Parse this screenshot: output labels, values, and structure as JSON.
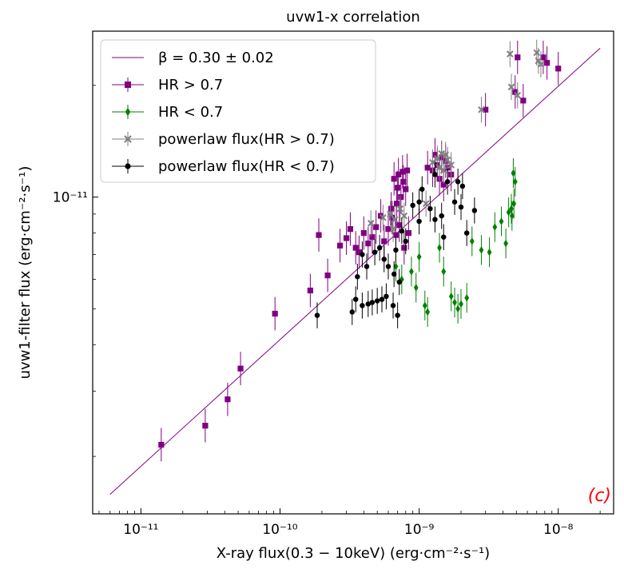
{
  "chart_data": {
    "type": "scatter",
    "title": "uvw1-x correlation",
    "xlabel": "X-ray flux(0.3 − 10keV) (erg·cm⁻²·s⁻¹)",
    "ylabel": "uvw1-filter flux (erg·cm⁻²·s⁻¹)",
    "xscale": "log",
    "yscale": "log",
    "xlim": [
      4.5e-12,
      2.5e-08
    ],
    "ylim": [
      1.4e-12,
      2.8e-11
    ],
    "x_ticks": [
      {
        "value": 1e-11,
        "label": "10⁻¹¹"
      },
      {
        "value": 1e-10,
        "label": "10⁻¹⁰"
      },
      {
        "value": 1e-09,
        "label": "10⁻⁹"
      },
      {
        "value": 1e-08,
        "label": "10⁻⁸"
      }
    ],
    "y_ticks": [
      {
        "value": 1e-11,
        "label": "10⁻¹¹"
      }
    ],
    "panel_label": "(c)",
    "legend": {
      "placement": "top-left"
    },
    "fit_line": {
      "name": "β = 0.30 ± 0.02",
      "color": "#800080",
      "x": [
        6e-12,
        2e-08
      ],
      "y": [
        1.58e-12,
        2.52e-11
      ]
    },
    "series": [
      {
        "name": "HR > 0.7",
        "color": "#800080",
        "marker": "square",
        "yerr_dex": 0.045,
        "points": [
          [
            1.4e-11,
            2.15e-12
          ],
          [
            2.9e-11,
            2.42e-12
          ],
          [
            4.2e-11,
            2.85e-12
          ],
          [
            5.2e-11,
            3.45e-12
          ],
          [
            9.2e-11,
            4.85e-12
          ],
          [
            1.65e-10,
            5.6e-12
          ],
          [
            2.2e-10,
            6.15e-12
          ],
          [
            1.9e-10,
            7.9e-12
          ],
          [
            2.7e-10,
            7.4e-12
          ],
          [
            3e-10,
            7.75e-12
          ],
          [
            3.2e-10,
            8.2e-12
          ],
          [
            3.5e-10,
            7.3e-12
          ],
          [
            3.7e-10,
            7.1e-12
          ],
          [
            4e-10,
            8e-12
          ],
          [
            4.3e-10,
            7.5e-12
          ],
          [
            4.6e-10,
            7.8e-12
          ],
          [
            4.9e-10,
            8.3e-12
          ],
          [
            5.3e-10,
            8.9e-12
          ],
          [
            5.6e-10,
            7.6e-12
          ],
          [
            6e-10,
            8.2e-12
          ],
          [
            6.4e-10,
            8.8e-12
          ],
          [
            6.8e-10,
            7.9e-12
          ],
          [
            7.2e-10,
            8.4e-12
          ],
          [
            7.8e-10,
            7.3e-12
          ],
          [
            8.4e-10,
            8e-12
          ],
          [
            6.3e-10,
            9.3e-12
          ],
          [
            6.9e-10,
            9.6e-12
          ],
          [
            7.4e-10,
            1e-11
          ],
          [
            8e-10,
            1.05e-11
          ],
          [
            6.6e-10,
            1.12e-11
          ],
          [
            7.1e-10,
            1.15e-11
          ],
          [
            7.6e-10,
            1.17e-11
          ],
          [
            8.2e-10,
            1.18e-11
          ],
          [
            7e-10,
            1.06e-11
          ],
          [
            7.7e-10,
            1.1e-11
          ],
          [
            1.15e-09,
            1.2e-11
          ],
          [
            1.25e-09,
            1.18e-11
          ],
          [
            1.35e-09,
            1.22e-11
          ],
          [
            1.45e-09,
            1.28e-11
          ],
          [
            1.55e-09,
            1.25e-11
          ],
          [
            1.3e-09,
            1.3e-11
          ],
          [
            1.6e-09,
            1.2e-11
          ],
          [
            1.7e-09,
            1.15e-11
          ],
          [
            1.4e-09,
            1.12e-11
          ],
          [
            1.5e-09,
            1.08e-11
          ],
          [
            3e-09,
            1.72e-11
          ],
          [
            4.9e-09,
            1.92e-11
          ],
          [
            5.6e-09,
            1.82e-11
          ],
          [
            5.1e-09,
            2.38e-11
          ],
          [
            7.8e-09,
            2.38e-11
          ],
          [
            8.3e-09,
            2.3e-11
          ],
          [
            1e-08,
            2.22e-11
          ]
        ]
      },
      {
        "name": "HR < 0.7",
        "color": "#008000",
        "marker": "diamond",
        "yerr_dex": 0.04,
        "points": [
          [
            6.8e-10,
            6.5e-12
          ],
          [
            7.5e-10,
            6e-12
          ],
          [
            8.8e-10,
            6.3e-12
          ],
          [
            1e-09,
            6.9e-12
          ],
          [
            9.5e-10,
            5.7e-12
          ],
          [
            1.1e-09,
            5.1e-12
          ],
          [
            1.15e-09,
            4.9e-12
          ],
          [
            1.4e-09,
            7.3e-12
          ],
          [
            1.5e-09,
            6.3e-12
          ],
          [
            1.7e-09,
            5.4e-12
          ],
          [
            1.8e-09,
            5.2e-12
          ],
          [
            1.9e-09,
            5e-12
          ],
          [
            2e-09,
            5.15e-12
          ],
          [
            2.2e-09,
            5.35e-12
          ],
          [
            2.4e-09,
            7.6e-12
          ],
          [
            2.8e-09,
            7.2e-12
          ],
          [
            3.2e-09,
            7.1e-12
          ],
          [
            3.5e-09,
            8.3e-12
          ],
          [
            3.9e-09,
            8.6e-12
          ],
          [
            4.2e-09,
            7.5e-12
          ],
          [
            4.4e-09,
            9.1e-12
          ],
          [
            4.6e-09,
            9.3e-12
          ],
          [
            4.8e-09,
            9.6e-12
          ],
          [
            4.9e-09,
            1.1e-11
          ],
          [
            4.75e-09,
            1.16e-11
          ],
          [
            4.65e-09,
            8.9e-12
          ]
        ]
      },
      {
        "name": "powerlaw flux(HR > 0.7)",
        "color": "#808080",
        "marker": "x",
        "yerr_dex": 0.035,
        "points": [
          [
            4.5e-10,
            8.5e-12
          ],
          [
            5.5e-10,
            8.8e-12
          ],
          [
            6.2e-10,
            9e-12
          ],
          [
            6.7e-10,
            8.7e-12
          ],
          [
            7.3e-10,
            9.3e-12
          ],
          [
            7.8e-10,
            8.9e-12
          ],
          [
            6.5e-10,
            8.2e-12
          ],
          [
            1.25e-09,
            1.24e-11
          ],
          [
            1.35e-09,
            1.27e-11
          ],
          [
            1.45e-09,
            1.31e-11
          ],
          [
            1.55e-09,
            1.3e-11
          ],
          [
            1.6e-09,
            1.26e-11
          ],
          [
            1.4e-09,
            1.2e-11
          ],
          [
            1.5e-09,
            1.18e-11
          ],
          [
            1.7e-09,
            1.22e-11
          ],
          [
            1.12e-09,
            9.6e-12
          ],
          [
            2.8e-09,
            1.72e-11
          ],
          [
            4.5e-09,
            2.43e-11
          ],
          [
            4.6e-09,
            1.98e-11
          ],
          [
            5.1e-09,
            1.88e-11
          ],
          [
            7e-09,
            2.45e-11
          ],
          [
            7.2e-09,
            2.33e-11
          ],
          [
            7.5e-09,
            2.28e-11
          ]
        ]
      },
      {
        "name": "powerlaw flux(HR < 0.7)",
        "color": "#000000",
        "marker": "circle",
        "yerr_dex": 0.035,
        "points": [
          [
            1.85e-10,
            4.8e-12
          ],
          [
            3.3e-10,
            4.9e-12
          ],
          [
            3.5e-10,
            5.3e-12
          ],
          [
            3.9e-10,
            5.1e-12
          ],
          [
            4.3e-10,
            5.15e-12
          ],
          [
            4.6e-10,
            5.2e-12
          ],
          [
            5e-10,
            5.25e-12
          ],
          [
            5.4e-10,
            5.3e-12
          ],
          [
            5.8e-10,
            5.4e-12
          ],
          [
            6.5e-10,
            5.1e-12
          ],
          [
            7e-10,
            4.8e-12
          ],
          [
            3.6e-10,
            6.1e-12
          ],
          [
            4.2e-10,
            6.5e-12
          ],
          [
            5.2e-10,
            7.3e-12
          ],
          [
            6e-10,
            6.5e-12
          ],
          [
            6.6e-10,
            6.2e-12
          ],
          [
            7.2e-10,
            5.9e-12
          ],
          [
            3.9e-10,
            7e-12
          ],
          [
            4.8e-10,
            7.1e-12
          ],
          [
            5.6e-10,
            6.8e-12
          ],
          [
            6.8e-10,
            7.2e-12
          ],
          [
            7.5e-10,
            8.1e-12
          ],
          [
            8e-10,
            7.6e-12
          ],
          [
            1e-09,
            8.6e-12
          ],
          [
            1.05e-09,
            1.05e-11
          ],
          [
            9e-10,
            9.5e-12
          ],
          [
            1.2e-09,
            9.3e-12
          ],
          [
            1.3e-09,
            8.7e-12
          ],
          [
            1.45e-09,
            8.9e-12
          ],
          [
            1.8e-09,
            9.7e-12
          ],
          [
            2e-09,
            9.4e-12
          ],
          [
            2.2e-09,
            8e-12
          ],
          [
            2.5e-09,
            9.2e-12
          ],
          [
            1.6e-09,
            1.1e-11
          ],
          [
            1.3e-09,
            1.15e-11
          ],
          [
            1.5e-09,
            7.8e-12
          ],
          [
            1.9e-09,
            1.1e-11
          ],
          [
            2.05e-09,
            1.07e-11
          ],
          [
            1e-09,
            9.7e-12
          ]
        ]
      }
    ]
  }
}
